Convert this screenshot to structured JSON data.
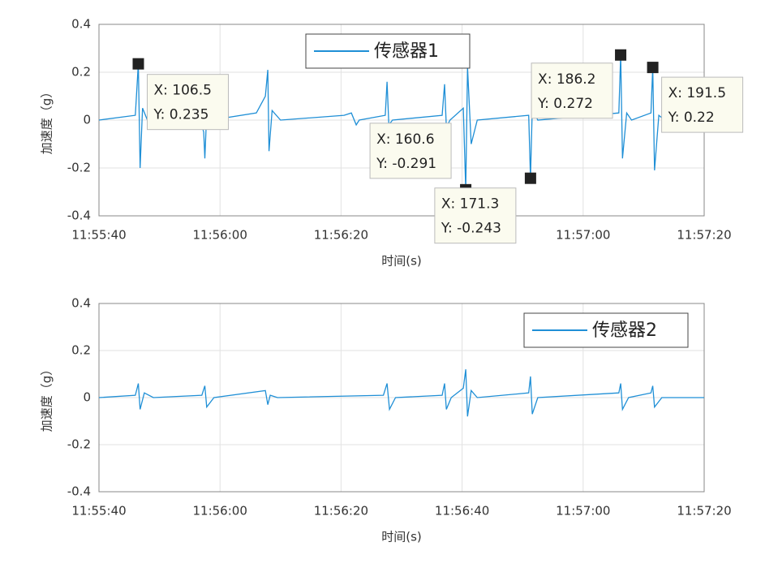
{
  "chart_data": [
    {
      "type": "line",
      "xlabel": "时间(s)",
      "ylabel": "加速度（g）",
      "xlim": [
        100,
        200
      ],
      "ylim": [
        -0.4,
        0.4
      ],
      "xticks": [
        {
          "value": 100,
          "label": "11:55:40"
        },
        {
          "value": 120,
          "label": "11:56:00"
        },
        {
          "value": 140,
          "label": "11:56:20"
        },
        {
          "value": 160,
          "label": "11:56:40"
        },
        {
          "value": 180,
          "label": "11:57:00"
        },
        {
          "value": 200,
          "label": "11:57:20"
        }
      ],
      "yticks": [
        0.4,
        0.2,
        0,
        -0.2,
        -0.4
      ],
      "grid": true,
      "legend": "north",
      "series": [
        {
          "name": "传感器1",
          "color": "#1f8fd6",
          "x": [
            100,
            106,
            106.5,
            106.8,
            107.2,
            108,
            116.5,
            117.3,
            117.5,
            117.8,
            118.5,
            126,
            127.5,
            127.9,
            128.1,
            128.6,
            130,
            140.5,
            141.7,
            142.5,
            143,
            147.3,
            147.6,
            147.9,
            148.5,
            156.7,
            157.1,
            157.4,
            158,
            160.2,
            160.6,
            160.9,
            161.5,
            162.5,
            171,
            171.3,
            171.6,
            172.5,
            185.9,
            186.2,
            186.5,
            187.2,
            188,
            191.2,
            191.5,
            191.8,
            192.5,
            193.5,
            200
          ],
          "values": [
            0,
            0.02,
            0.235,
            -0.2,
            0.05,
            0,
            0.02,
            -0.05,
            -0.16,
            0.03,
            0,
            0.03,
            0.1,
            0.21,
            -0.13,
            0.04,
            0,
            0.02,
            0.03,
            -0.02,
            0,
            0.02,
            0.16,
            -0.02,
            0,
            0.02,
            0.15,
            -0.03,
            0,
            0.05,
            -0.291,
            0.22,
            -0.1,
            0,
            0.02,
            -0.243,
            0.05,
            0,
            0.03,
            0.272,
            -0.16,
            0.03,
            0,
            0.03,
            0.22,
            -0.21,
            0.02,
            0,
            0
          ]
        }
      ],
      "annotations": [
        {
          "x": 106.5,
          "y": 0.235,
          "label_x": "X: 106.5",
          "label_y": "Y: 0.235"
        },
        {
          "x": 160.6,
          "y": -0.291,
          "label_x": "X: 160.6",
          "label_y": "Y: -0.291"
        },
        {
          "x": 171.3,
          "y": -0.243,
          "label_x": "X: 171.3",
          "label_y": "Y: -0.243"
        },
        {
          "x": 186.2,
          "y": 0.272,
          "label_x": "X: 186.2",
          "label_y": "Y: 0.272"
        },
        {
          "x": 191.5,
          "y": 0.22,
          "label_x": "X: 191.5",
          "label_y": "Y: 0.22"
        }
      ]
    },
    {
      "type": "line",
      "xlabel": "时间(s)",
      "ylabel": "加速度（g）",
      "xlim": [
        100,
        200
      ],
      "ylim": [
        -0.4,
        0.4
      ],
      "xticks": [
        {
          "value": 100,
          "label": "11:55:40"
        },
        {
          "value": 120,
          "label": "11:56:00"
        },
        {
          "value": 140,
          "label": "11:56:20"
        },
        {
          "value": 160,
          "label": "11:56:40"
        },
        {
          "value": 180,
          "label": "11:57:00"
        },
        {
          "value": 200,
          "label": "11:57:20"
        }
      ],
      "yticks": [
        0.4,
        0.2,
        0,
        -0.2,
        -0.4
      ],
      "grid": true,
      "legend": "northeast",
      "series": [
        {
          "name": "传感器2",
          "color": "#1f8fd6",
          "x": [
            100,
            106,
            106.5,
            106.8,
            107.5,
            109,
            117,
            117.5,
            117.8,
            119,
            127.5,
            127.9,
            128.3,
            129.5,
            147,
            147.6,
            148,
            149,
            156.7,
            157.1,
            157.4,
            158.2,
            160.2,
            160.6,
            160.9,
            161.5,
            162.5,
            171,
            171.3,
            171.6,
            172.5,
            185.9,
            186.2,
            186.5,
            187.5,
            191.2,
            191.5,
            191.8,
            193,
            200
          ],
          "values": [
            0,
            0.01,
            0.06,
            -0.05,
            0.02,
            0,
            0.01,
            0.05,
            -0.04,
            0,
            0.03,
            -0.03,
            0.01,
            0,
            0.01,
            0.06,
            -0.05,
            0,
            0.01,
            0.06,
            -0.05,
            0,
            0.04,
            0.12,
            -0.08,
            0.03,
            0,
            0.02,
            0.09,
            -0.07,
            0,
            0.02,
            0.06,
            -0.05,
            0,
            0.02,
            0.05,
            -0.04,
            0,
            0
          ]
        }
      ]
    }
  ]
}
